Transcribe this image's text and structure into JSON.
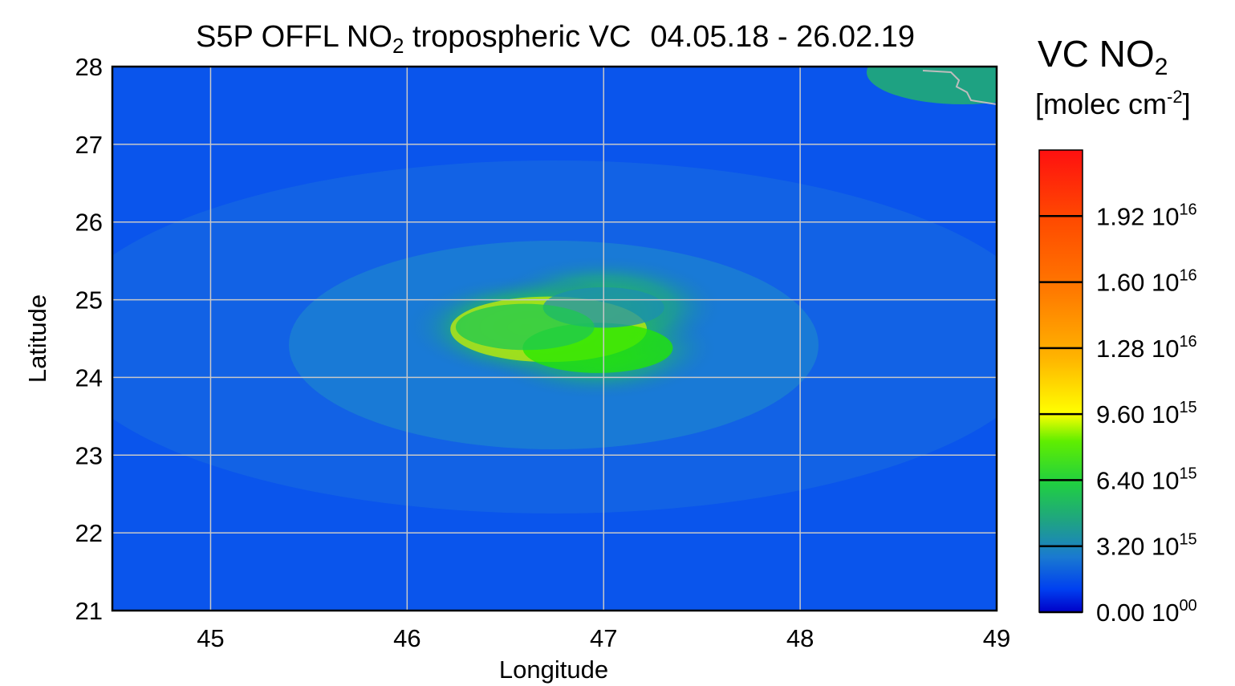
{
  "chart_data": {
    "type": "heatmap",
    "title": {
      "main": "S5P OFFL NO",
      "subscript": "2",
      "rest": " tropospheric VC",
      "date_range": "04.05.18 - 26.02.19"
    },
    "xlabel": "Longitude",
    "ylabel": "Latitude",
    "xlim": [
      44.5,
      49
    ],
    "ylim": [
      21,
      28
    ],
    "x_ticks": [
      "45",
      "46",
      "47",
      "48",
      "49"
    ],
    "y_ticks": [
      "21",
      "22",
      "23",
      "24",
      "25",
      "26",
      "27",
      "28"
    ],
    "grid": true,
    "background_level": 2000000000000000.0,
    "hotspots": [
      {
        "lon": 46.72,
        "lat": 24.62,
        "value": 1.2e+16
      },
      {
        "lon": 46.97,
        "lat": 24.38,
        "value": 8000000000000000.0
      },
      {
        "lon": 47.0,
        "lat": 24.9,
        "value": 5500000000000000.0
      },
      {
        "lon": 46.6,
        "lat": 24.65,
        "value": 7000000000000000.0
      }
    ],
    "colorbar": {
      "title": "VC NO",
      "title_subscript": "2",
      "unit_prefix": "[molec cm",
      "unit_sup": "-2",
      "unit_suffix": "]",
      "range": [
        0,
        2.24e+16
      ],
      "ticks": [
        {
          "value": 1.92e+16,
          "mantissa": "1.92 10",
          "exp": "16"
        },
        {
          "value": 1.6e+16,
          "mantissa": "1.60 10",
          "exp": "16"
        },
        {
          "value": 1.28e+16,
          "mantissa": "1.28 10",
          "exp": "16"
        },
        {
          "value": 9600000000000000.0,
          "mantissa": "9.60 10",
          "exp": "15"
        },
        {
          "value": 6400000000000000.0,
          "mantissa": "6.40 10",
          "exp": "15"
        },
        {
          "value": 3200000000000000.0,
          "mantissa": "3.20 10",
          "exp": "15"
        },
        {
          "value": 0,
          "mantissa": "0.00 10",
          "exp": "00"
        }
      ],
      "colors": [
        "#0000e6",
        "#0050f0",
        "#1c8fb0",
        "#1ec850",
        "#22e800",
        "#c8f000",
        "#ffff00",
        "#ffb000",
        "#ff7000",
        "#ff4000",
        "#ff1010"
      ]
    }
  }
}
